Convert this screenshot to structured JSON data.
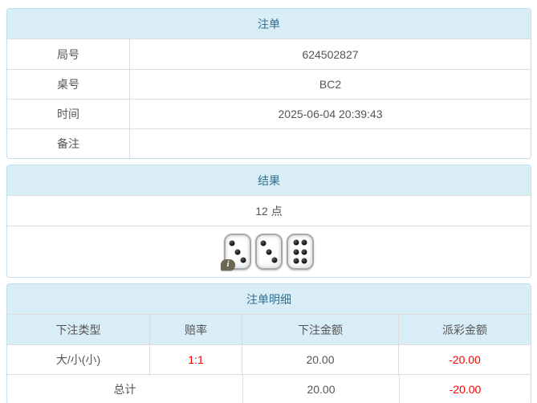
{
  "colors": {
    "heading_bg": "#d9edf7",
    "heading_text": "#31708f",
    "border": "#ddd",
    "panel_border": "#bfe0ee",
    "body_text": "#555",
    "negative": "#ff0000"
  },
  "panels": {
    "bet": {
      "title": "注单",
      "rows": [
        {
          "label": "局号",
          "value": "624502827"
        },
        {
          "label": "桌号",
          "value": "BC2"
        },
        {
          "label": "时间",
          "value": "2025-06-04 20:39:43"
        },
        {
          "label": "备注",
          "value": ""
        }
      ]
    },
    "result": {
      "title": "结果",
      "points": "12 点",
      "dice": [
        3,
        3,
        6
      ],
      "info_badge": "i"
    },
    "detail": {
      "title": "注单明细",
      "columns": [
        "下注类型",
        "赔率",
        "下注金额",
        "派彩金额"
      ],
      "rows": [
        {
          "bet_type": "大/小(小)",
          "odds": "1:1",
          "bet_amount": "20.00",
          "payout": "-20.00"
        }
      ],
      "total": {
        "label": "总计",
        "bet_amount": "20.00",
        "payout": "-20.00"
      }
    }
  }
}
